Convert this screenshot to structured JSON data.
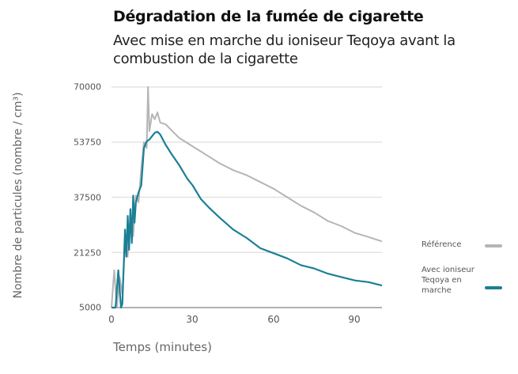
{
  "header": {
    "title": "Dégradation de la fumée de cigarette",
    "subtitle": "Avec mise en marche du ioniseur Teqoya avant la combustion de la cigarette"
  },
  "axes": {
    "ylabel": "Nombre de particules  (nombre / cm³)",
    "xlabel": "Temps (minutes)",
    "yticks": [
      "70000",
      "53750",
      "37500",
      "21250",
      "5000"
    ],
    "xticks": [
      "0",
      "30",
      "60",
      "90"
    ]
  },
  "legend": {
    "items": [
      {
        "label": "Référence",
        "color": "#b5b5b5"
      },
      {
        "label": "Avec ioniseur Teqoya en marche",
        "color": "#1b7f96"
      }
    ]
  },
  "colors": {
    "reference": "#b5b5b5",
    "teqoya": "#1b7f96",
    "grid": "#e3e3e3",
    "axis": "#b0b0b0"
  },
  "chart_data": {
    "type": "line",
    "title": "Dégradation de la fumée de cigarette",
    "subtitle": "Avec mise en marche du ioniseur Teqoya avant la combustion de la cigarette",
    "xlabel": "Temps (minutes)",
    "ylabel": "Nombre de particules  (nombre / cm³)",
    "xlim": [
      0,
      100
    ],
    "ylim": [
      5000,
      70000
    ],
    "xticks": [
      0,
      30,
      60,
      90
    ],
    "yticks": [
      5000,
      21250,
      37500,
      53750,
      70000
    ],
    "grid": "horizontal",
    "legend_position": "right",
    "series": [
      {
        "name": "Référence",
        "color": "#b5b5b5",
        "x": [
          0,
          1,
          2,
          3,
          4,
          5,
          6,
          7,
          8,
          9,
          10,
          11,
          12,
          13,
          13.5,
          14,
          15,
          16,
          17,
          18,
          20,
          25,
          30,
          35,
          40,
          45,
          50,
          55,
          60,
          65,
          70,
          75,
          80,
          85,
          90,
          95,
          100
        ],
        "y": [
          5000,
          16000,
          5000,
          14000,
          9000,
          24000,
          20000,
          32000,
          26000,
          38000,
          36000,
          46000,
          53750,
          52000,
          70000,
          57000,
          62000,
          60500,
          62500,
          59500,
          59000,
          55000,
          52500,
          50000,
          47500,
          45500,
          44000,
          42000,
          40000,
          37500,
          35000,
          33000,
          30500,
          29000,
          27000,
          25800,
          24500
        ]
      },
      {
        "name": "Avec ioniseur Teqoya en marche",
        "color": "#1b7f96",
        "x": [
          0,
          1.5,
          2.5,
          3.5,
          4,
          5,
          5.5,
          6,
          6.5,
          7,
          7.5,
          8,
          8.5,
          9,
          10,
          11,
          12,
          13,
          14,
          15,
          16,
          17,
          18,
          20,
          22,
          25,
          28,
          30,
          33,
          36,
          40,
          45,
          50,
          55,
          60,
          65,
          70,
          75,
          80,
          85,
          90,
          95,
          100
        ],
        "y": [
          5000,
          5000,
          16000,
          5000,
          6000,
          28000,
          20000,
          32000,
          22000,
          34000,
          24000,
          38000,
          30000,
          36000,
          39000,
          41000,
          52000,
          54000,
          54500,
          55500,
          56500,
          56800,
          56000,
          53000,
          50500,
          47000,
          43000,
          41000,
          37000,
          34500,
          31500,
          28000,
          25500,
          22500,
          21000,
          19500,
          17500,
          16500,
          15000,
          14000,
          13000,
          12500,
          11500
        ]
      }
    ]
  }
}
